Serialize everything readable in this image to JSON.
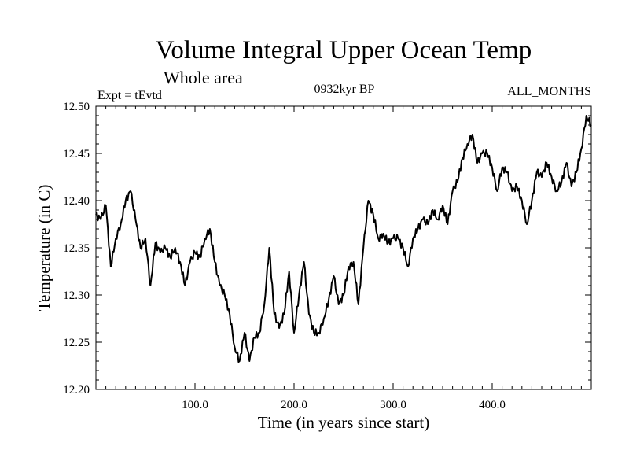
{
  "chart_data": {
    "type": "line",
    "title": "Volume Integral Upper Ocean Temp",
    "subtitle": "Whole area",
    "expt_label": "Expt = tEvtd",
    "period_label": "0932kyr BP",
    "months_label": "ALL_MONTHS",
    "xlabel": "Time (in years since start)",
    "ylabel": "Temperature (in C)",
    "xlim": [
      0,
      500
    ],
    "ylim": [
      12.2,
      12.5
    ],
    "x_ticks": [
      100,
      200,
      300,
      400
    ],
    "x_tick_labels": [
      "100.0",
      "200.0",
      "300.0",
      "400.0"
    ],
    "y_ticks": [
      12.2,
      12.25,
      12.3,
      12.35,
      12.4,
      12.45,
      12.5
    ],
    "y_tick_labels": [
      "12.20",
      "12.25",
      "12.30",
      "12.35",
      "12.40",
      "12.45",
      "12.50"
    ],
    "grid": false,
    "series": [
      {
        "name": "Temperature",
        "color": "#000000",
        "x": [
          0,
          5,
          10,
          15,
          20,
          25,
          30,
          35,
          40,
          45,
          50,
          55,
          60,
          65,
          70,
          75,
          80,
          85,
          90,
          95,
          100,
          105,
          110,
          115,
          120,
          125,
          130,
          135,
          140,
          145,
          150,
          155,
          160,
          165,
          170,
          175,
          180,
          185,
          190,
          195,
          200,
          205,
          210,
          215,
          220,
          225,
          230,
          235,
          240,
          245,
          250,
          255,
          260,
          265,
          270,
          275,
          280,
          285,
          290,
          295,
          300,
          305,
          310,
          315,
          320,
          325,
          330,
          335,
          340,
          345,
          350,
          355,
          360,
          365,
          370,
          375,
          380,
          385,
          390,
          395,
          400,
          405,
          410,
          415,
          420,
          425,
          430,
          435,
          440,
          445,
          450,
          455,
          460,
          465,
          470,
          475,
          480,
          485,
          490,
          495,
          500
        ],
        "values": [
          12.385,
          12.38,
          12.395,
          12.33,
          12.36,
          12.375,
          12.4,
          12.41,
          12.38,
          12.35,
          12.36,
          12.31,
          12.355,
          12.345,
          12.35,
          12.34,
          12.35,
          12.335,
          12.31,
          12.335,
          12.345,
          12.34,
          12.36,
          12.37,
          12.335,
          12.31,
          12.3,
          12.28,
          12.245,
          12.23,
          12.26,
          12.23,
          12.255,
          12.26,
          12.29,
          12.35,
          12.28,
          12.265,
          12.28,
          12.325,
          12.26,
          12.3,
          12.335,
          12.28,
          12.26,
          12.26,
          12.275,
          12.295,
          12.32,
          12.29,
          12.3,
          12.33,
          12.335,
          12.29,
          12.35,
          12.4,
          12.385,
          12.36,
          12.365,
          12.355,
          12.36,
          12.36,
          12.35,
          12.33,
          12.36,
          12.37,
          12.38,
          12.375,
          12.39,
          12.38,
          12.395,
          12.375,
          12.41,
          12.42,
          12.445,
          12.46,
          12.47,
          12.44,
          12.45,
          12.45,
          12.435,
          12.41,
          12.435,
          12.43,
          12.41,
          12.415,
          12.4,
          12.375,
          12.4,
          12.43,
          12.425,
          12.44,
          12.425,
          12.41,
          12.42,
          12.44,
          12.415,
          12.43,
          12.455,
          12.49,
          12.48
        ]
      }
    ]
  }
}
